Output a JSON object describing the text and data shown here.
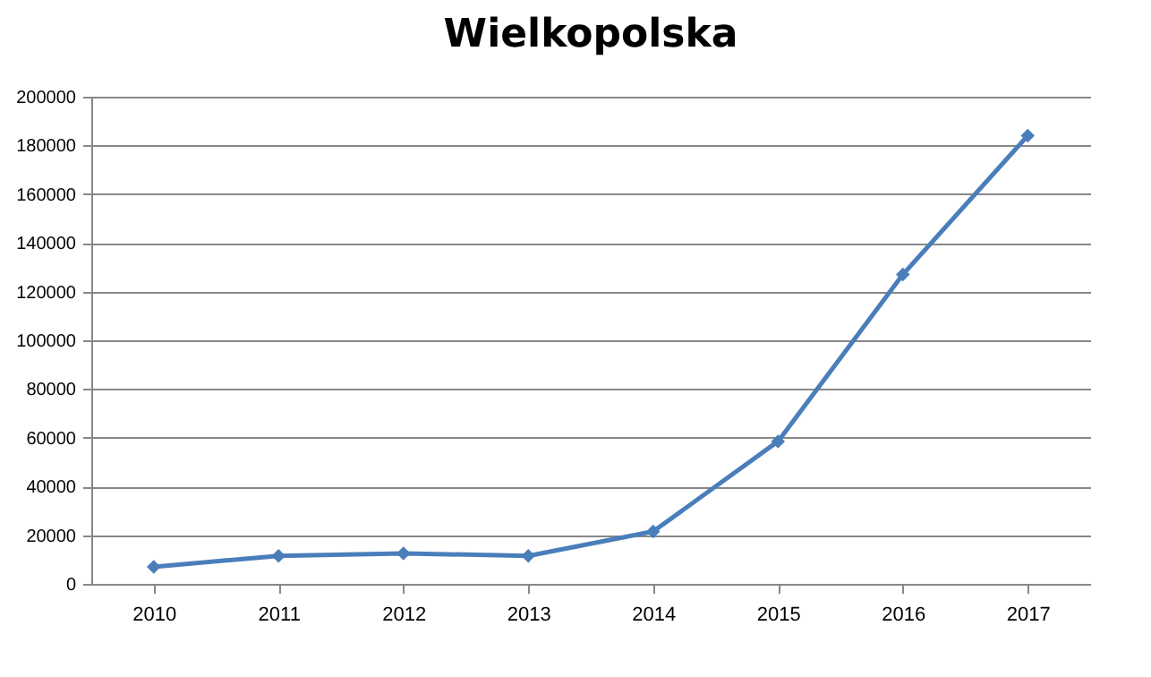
{
  "chart_data": {
    "type": "line",
    "title": "Wielkopolska",
    "categories": [
      "2010",
      "2011",
      "2012",
      "2013",
      "2014",
      "2015",
      "2016",
      "2017"
    ],
    "series": [
      {
        "color": "#4a7ebb",
        "values": [
          7000,
          11500,
          12500,
          11500,
          21500,
          58500,
          127000,
          184000
        ]
      }
    ],
    "ylim": [
      0,
      200000
    ],
    "yticks": [
      0,
      20000,
      40000,
      60000,
      80000,
      100000,
      120000,
      140000,
      160000,
      180000,
      200000
    ],
    "grid": "y",
    "legend": false,
    "marker": "diamond",
    "line_style": "solid"
  }
}
